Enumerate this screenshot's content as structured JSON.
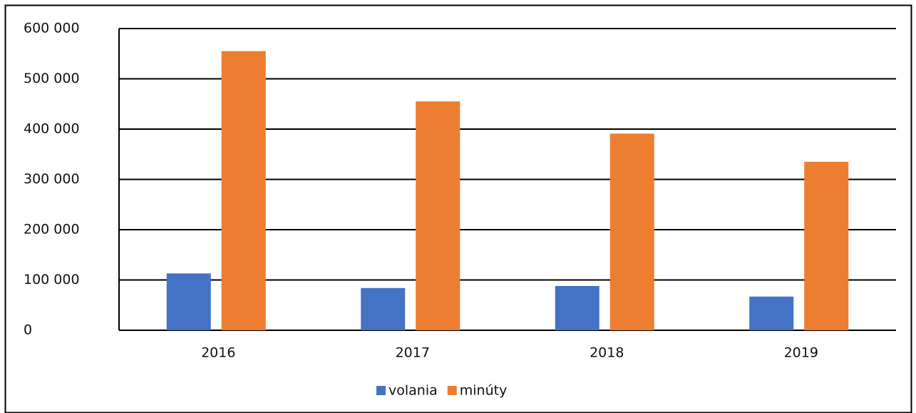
{
  "chart_data": {
    "type": "bar",
    "categories": [
      "2016",
      "2017",
      "2018",
      "2019"
    ],
    "series": [
      {
        "name": "volania",
        "color": "#4472c4",
        "values": [
          113000,
          84000,
          88000,
          67000
        ]
      },
      {
        "name": "minúty",
        "color": "#ed7d31",
        "values": [
          555000,
          455000,
          391000,
          335000
        ]
      }
    ],
    "ylim": [
      0,
      600000
    ],
    "yticks": [
      0,
      {
        "value": 100000,
        "label": "100 000"
      },
      {
        "value": 200000,
        "label": "200 000"
      },
      {
        "value": 300000,
        "label": "300 000"
      },
      {
        "value": 400000,
        "label": "400 000"
      },
      {
        "value": 500000,
        "label": "500 000"
      },
      {
        "value": 600000,
        "label": "600 000"
      }
    ],
    "grid": true,
    "legend": "bottom"
  }
}
